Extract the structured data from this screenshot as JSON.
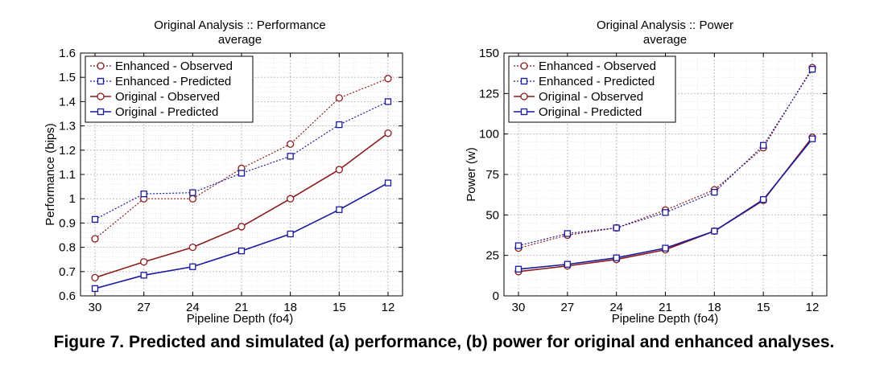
{
  "caption": "Figure 7. Predicted and simulated (a) performance, (b) power for original and enhanced analyses.",
  "colors": {
    "observed": "#8b1a1a",
    "predicted": "#1a1a9c",
    "grid": "#b4b4b4"
  },
  "chart_data": [
    {
      "type": "line",
      "title": [
        "Original Analysis :: Performance",
        "average"
      ],
      "xlabel": "Pipeline Depth (fo4)",
      "ylabel": "Performance (bips)",
      "categories": [
        "30",
        "27",
        "24",
        "21",
        "18",
        "15",
        "12"
      ],
      "ylim": [
        0.6,
        1.6
      ],
      "yticks": [
        0.6,
        0.7,
        0.8,
        0.9,
        1,
        1.1,
        1.2,
        1.3,
        1.4,
        1.5,
        1.6
      ],
      "yticklabels": [
        "0.6",
        "0.7",
        "0.8",
        "0.9",
        "1",
        "1.1",
        "1.2",
        "1.3",
        "1.4",
        "1.5",
        "1.6"
      ],
      "grid": true,
      "legend_position": "top-left",
      "series": [
        {
          "name": "Enhanced - Observed",
          "color": "#8b1a1a",
          "marker": "circle",
          "dashed": true,
          "values": [
            0.835,
            1.0,
            1.0,
            1.125,
            1.225,
            1.415,
            1.495
          ]
        },
        {
          "name": "Enhanced - Predicted",
          "color": "#1a1a9c",
          "marker": "square",
          "dashed": true,
          "values": [
            0.915,
            1.02,
            1.025,
            1.105,
            1.175,
            1.305,
            1.4
          ]
        },
        {
          "name": "Original - Observed",
          "color": "#8b1a1a",
          "marker": "circle",
          "dashed": false,
          "values": [
            0.675,
            0.74,
            0.8,
            0.885,
            1.0,
            1.12,
            1.27
          ]
        },
        {
          "name": "Original - Predicted",
          "color": "#1a1a9c",
          "marker": "square",
          "dashed": false,
          "values": [
            0.63,
            0.685,
            0.72,
            0.785,
            0.855,
            0.955,
            1.065
          ]
        }
      ]
    },
    {
      "type": "line",
      "title": [
        "Original Analysis :: Power",
        "average"
      ],
      "xlabel": "Pipeline Depth (fo4)",
      "ylabel": "Power (w)",
      "categories": [
        "30",
        "27",
        "24",
        "21",
        "18",
        "15",
        "12"
      ],
      "ylim": [
        0,
        150
      ],
      "yticks": [
        0,
        25,
        50,
        75,
        100,
        125,
        150
      ],
      "yticklabels": [
        "0",
        "25",
        "50",
        "75",
        "100",
        "125",
        "150"
      ],
      "grid": true,
      "legend_position": "top-left",
      "series": [
        {
          "name": "Enhanced - Observed",
          "color": "#8b1a1a",
          "marker": "circle",
          "dashed": true,
          "values": [
            29.5,
            37.5,
            42,
            53,
            65.5,
            91.5,
            141
          ]
        },
        {
          "name": "Enhanced - Predicted",
          "color": "#1a1a9c",
          "marker": "square",
          "dashed": true,
          "values": [
            31,
            38.5,
            42,
            51.5,
            64,
            93,
            140
          ]
        },
        {
          "name": "Original - Observed",
          "color": "#8b1a1a",
          "marker": "circle",
          "dashed": false,
          "values": [
            15,
            18.5,
            22.5,
            28.5,
            40,
            59,
            98
          ]
        },
        {
          "name": "Original - Predicted",
          "color": "#1a1a9c",
          "marker": "square",
          "dashed": false,
          "values": [
            16.5,
            19.5,
            23.5,
            29.5,
            40,
            59.5,
            97
          ]
        }
      ]
    }
  ]
}
